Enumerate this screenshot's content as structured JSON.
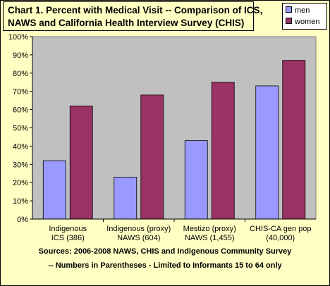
{
  "chart_data": {
    "type": "bar",
    "title_lines": [
      "Chart 1.  Percent with Medical Visit -- Comparison of ICS,",
      "NAWS and California Health Interview Survey (CHIS)"
    ],
    "categories": [
      [
        "Indigenous",
        "ICS (386)"
      ],
      [
        "Indigenous (proxy)",
        "NAWS (604)"
      ],
      [
        "Mestizo (proxy)",
        "NAWS (1,455)"
      ],
      [
        "CHIS-CA gen pop",
        "(40,000)"
      ]
    ],
    "series": [
      {
        "name": "men",
        "values": [
          32,
          23,
          43,
          73
        ],
        "color": "#9999ff"
      },
      {
        "name": "women",
        "values": [
          62,
          68,
          75,
          87
        ],
        "color": "#993366"
      }
    ],
    "ylim": [
      0,
      100
    ],
    "yticks": [
      "0%",
      "10%",
      "20%",
      "30%",
      "40%",
      "50%",
      "60%",
      "70%",
      "80%",
      "90%",
      "100%"
    ],
    "xlabel": "",
    "ylabel": "",
    "grid": false,
    "legend_position": "top-right",
    "plot_background": "#c0c0c0",
    "footer_lines": [
      "Sources:  2006-2008 NAWS, CHIS and Indigenous Community Survey",
      "-- Numbers in Parentheses - Limited to Informants 15 to 64 only"
    ]
  }
}
